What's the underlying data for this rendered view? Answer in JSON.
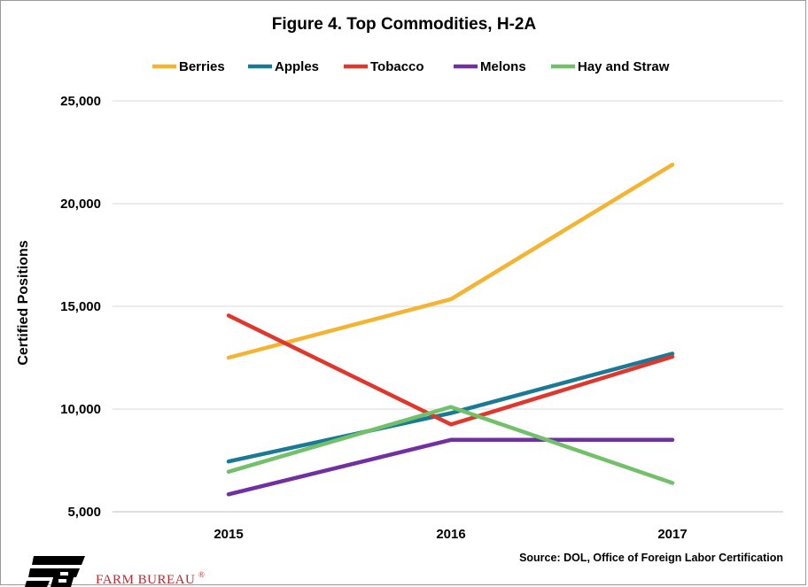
{
  "chart_data": {
    "type": "line",
    "title": "Figure 4. Top Commodities,  H-2A",
    "xlabel": "",
    "ylabel": "Certified Positions",
    "categories": [
      "2015",
      "2016",
      "2017"
    ],
    "ylim": [
      5000,
      25000
    ],
    "yticks": [
      5000,
      10000,
      15000,
      20000,
      25000
    ],
    "ytick_labels": [
      "5,000",
      "10,000",
      "15,000",
      "20,000",
      "25,000"
    ],
    "grid": "horizontal",
    "legend_position": "top",
    "series": [
      {
        "name": "Berries",
        "color": "#f4b330",
        "values": [
          12500,
          15350,
          21900
        ]
      },
      {
        "name": "Apples",
        "color": "#1a7a96",
        "values": [
          7450,
          9800,
          12700
        ]
      },
      {
        "name": "Tobacco",
        "color": "#e0362b",
        "values": [
          14550,
          9250,
          12550
        ]
      },
      {
        "name": "Melons",
        "color": "#7030a0",
        "values": [
          5850,
          8500,
          8500
        ]
      },
      {
        "name": "Hay and Straw",
        "color": "#72c069",
        "values": [
          6950,
          10100,
          6400
        ]
      }
    ]
  },
  "footer": {
    "source": "Source: DOL, Office of Foreign Labor Certification",
    "logo_text": "FARM BUREAU",
    "logo_mark": "®"
  }
}
